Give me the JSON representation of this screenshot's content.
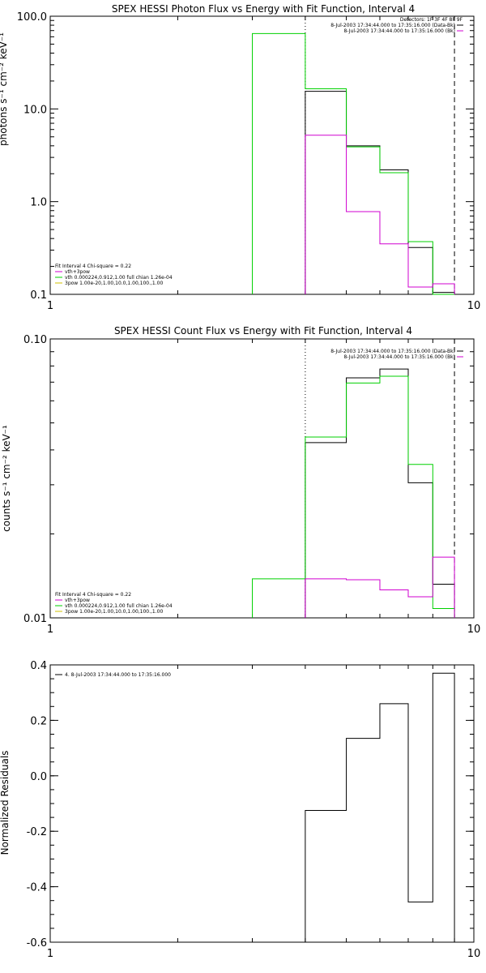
{
  "chart_data": [
    {
      "type": "line",
      "drawstyle": "histogram",
      "title": "SPEX HESSI Photon Flux vs Energy with Fit Function, Interval 4",
      "ylabel": "photons s⁻¹ cm⁻² keV⁻¹",
      "xscale": "log",
      "yscale": "log",
      "xlim": [
        1,
        10
      ],
      "ylim": [
        0.1,
        100
      ],
      "xticks": [
        "1",
        "10"
      ],
      "yticks": [
        "0.1",
        "1.0",
        "10.0",
        "100.0"
      ],
      "bin_edges": [
        3,
        4,
        5,
        6,
        7,
        8,
        9
      ],
      "vlines": [
        {
          "x": 4,
          "style": "dotted"
        },
        {
          "x": 9,
          "style": "dashed"
        }
      ],
      "series": [
        {
          "color": "#000000",
          "values": [
            null,
            15.5,
            4.0,
            2.2,
            0.32,
            0.105
          ]
        },
        {
          "color": "#00d000",
          "values": [
            65,
            16.5,
            3.9,
            2.05,
            0.37,
            0.1
          ]
        },
        {
          "color": "#d000d0",
          "values": [
            null,
            5.2,
            0.78,
            0.35,
            0.12,
            0.13
          ]
        }
      ],
      "legend_right": {
        "header": "Detectors: 1F 3F 4F 8F 9F",
        "entries": [
          {
            "text": "8-Jul-2003 17:34:44.000 to 17:35:16.000 (Data-Bk)",
            "color": "#000000"
          },
          {
            "text": "8-Jul-2003 17:34:44.000 to 17:35:16.000 (Bk)",
            "color": "#d000d0"
          }
        ]
      },
      "legend_left": {
        "header": "Fit Interval 4   Chi-square = 0.22",
        "entries": [
          {
            "text": "vth+3pow",
            "color": "#d000d0"
          },
          {
            "text": "vth 0.000224,0.912,1.00  full chian 1.26e-04",
            "color": "#00d000"
          },
          {
            "text": "3pow 1.00e-20,1.00,10.0,1.00,100.,1.00",
            "color": "#d0c000"
          }
        ]
      }
    },
    {
      "type": "line",
      "drawstyle": "histogram",
      "title": "SPEX HESSI Count Flux vs Energy with Fit Function, Interval 4",
      "ylabel": "counts s⁻¹ cm⁻² keV⁻¹",
      "xscale": "log",
      "yscale": "log",
      "xlim": [
        1,
        10
      ],
      "ylim": [
        0.01,
        0.1
      ],
      "xticks": [
        "1",
        "10"
      ],
      "yticks": [
        "0.01",
        "0.10"
      ],
      "bin_edges": [
        3,
        4,
        5,
        6,
        7,
        8,
        9
      ],
      "vlines": [
        {
          "x": 4,
          "style": "dotted"
        },
        {
          "x": 9,
          "style": "dashed"
        }
      ],
      "series": [
        {
          "color": "#000000",
          "values": [
            null,
            0.0425,
            0.0725,
            0.078,
            0.0305,
            0.0132
          ]
        },
        {
          "color": "#00d000",
          "values": [
            0.0138,
            0.0445,
            0.0695,
            0.0735,
            0.0355,
            0.0108
          ]
        },
        {
          "color": "#d000d0",
          "values": [
            null,
            0.0138,
            0.0137,
            0.0126,
            0.0119,
            0.0165
          ]
        }
      ],
      "legend_right": {
        "entries": [
          {
            "text": "8-Jul-2003 17:34:44.000 to 17:35:16.000 (Data-Bk)",
            "color": "#000000"
          },
          {
            "text": "8-Jul-2003 17:34:44.000 to 17:35:16.000 (Bk)",
            "color": "#d000d0"
          }
        ]
      },
      "legend_left": {
        "header": "Fit Interval 4   Chi-square = 0.22",
        "entries": [
          {
            "text": "vth+3pow",
            "color": "#d000d0"
          },
          {
            "text": "vth 0.000224,0.912,1.00  full chian 1.26e-04",
            "color": "#00d000"
          },
          {
            "text": "3pow 1.00e-20,1.00,10.0,1.00,100.,1.00",
            "color": "#d0c000"
          }
        ]
      }
    },
    {
      "type": "line",
      "drawstyle": "histogram",
      "title": "",
      "ylabel": "Normalized Residuals",
      "xscale": "log",
      "yscale": "linear",
      "xlim": [
        1,
        10
      ],
      "ylim": [
        -0.6,
        0.4
      ],
      "xticks": [
        "1",
        "10"
      ],
      "yticks": [
        "-0.6",
        "-0.4",
        "-0.2",
        "0.0",
        "0.2",
        "0.4"
      ],
      "bin_edges": [
        4,
        5,
        6,
        7,
        8,
        9
      ],
      "series": [
        {
          "color": "#000000",
          "values": [
            -0.125,
            0.135,
            0.26,
            -0.455,
            0.37
          ]
        }
      ],
      "legend_left": {
        "entries": [
          {
            "text": "4.  8-Jul-2003 17:34:44.000 to 17:35:16.000",
            "color": "#000000"
          }
        ]
      }
    }
  ]
}
